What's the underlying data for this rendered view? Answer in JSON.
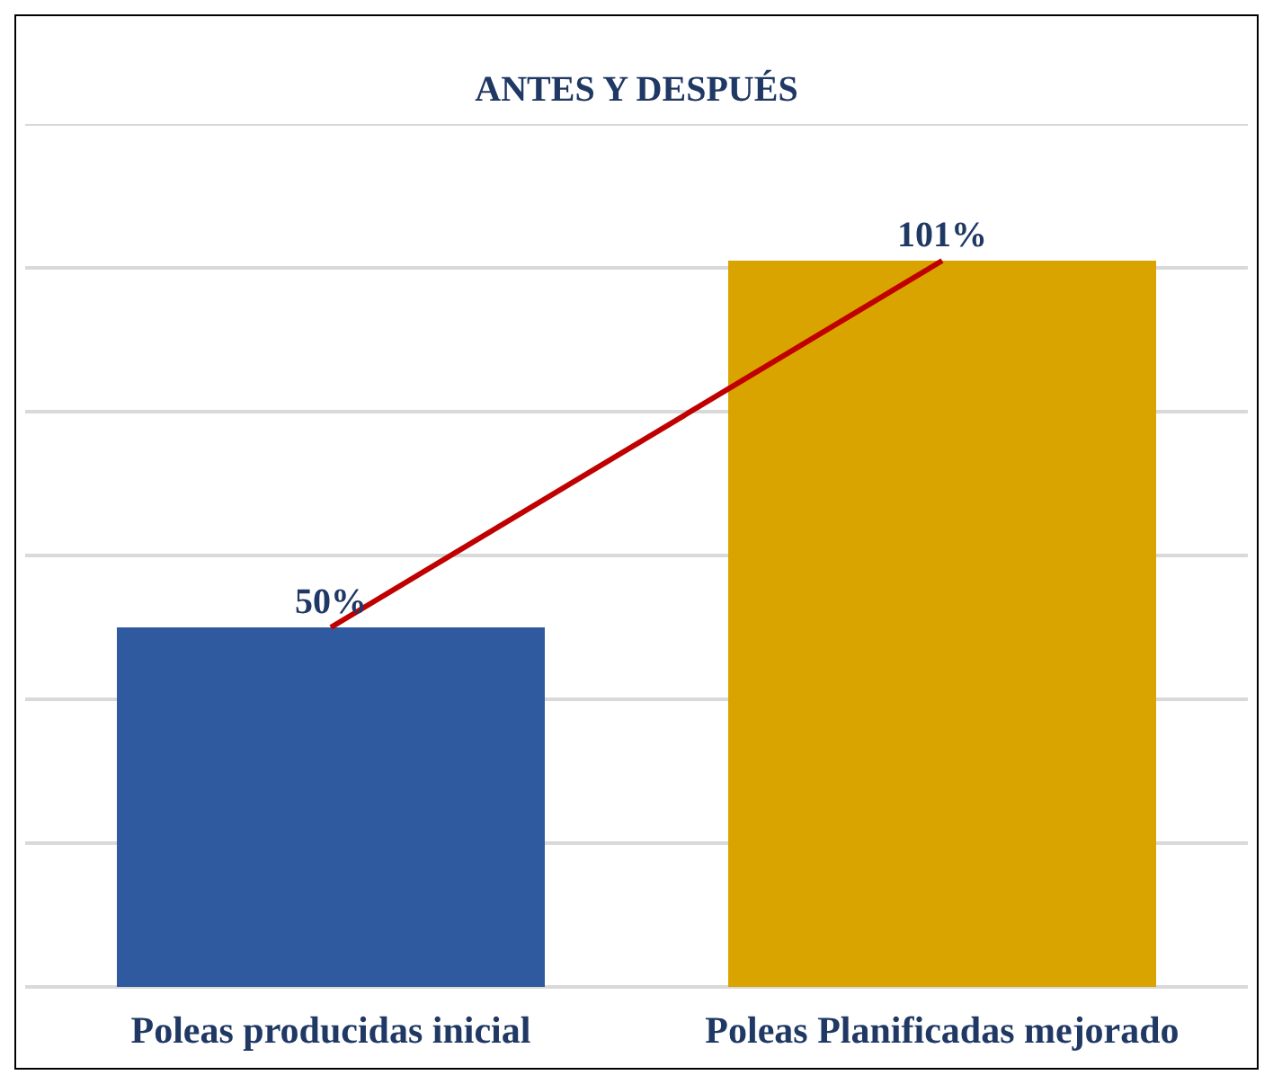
{
  "chart_data": {
    "type": "bar",
    "title": "ANTES Y DESPUÉS",
    "categories": [
      "Poleas producidas inicial",
      "Poleas Planificadas mejorado"
    ],
    "series": [
      {
        "values": [
          50,
          101
        ],
        "colors": [
          "#2f5aa0",
          "#d9a400"
        ],
        "value_labels": [
          "50%",
          "101%"
        ]
      },
      {
        "type": "line",
        "values": [
          50,
          101
        ],
        "color": "#c00000"
      }
    ],
    "marker": "none",
    "ylim": [
      0,
      120
    ],
    "yticks": [
      {
        "value": 0,
        "label": null
      },
      {
        "value": 20,
        "label": null
      },
      {
        "value": 40,
        "label": null
      },
      {
        "value": 60,
        "label": null
      },
      {
        "value": 80,
        "label": null
      },
      {
        "value": 100,
        "label": null
      },
      {
        "value": 120,
        "label": null
      }
    ],
    "grid": "y",
    "tick_labels": "x"
  }
}
